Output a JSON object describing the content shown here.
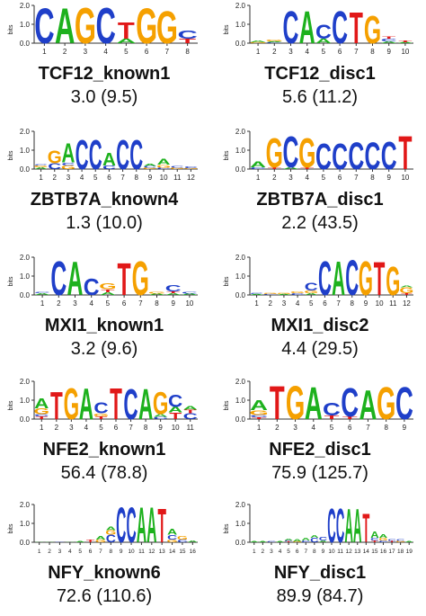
{
  "colors": {
    "A": "#1db11d",
    "C": "#1f3fc9",
    "G": "#f5a000",
    "T": "#e11818",
    "axis": "#333333"
  },
  "axis": {
    "ylabel": "bits",
    "ticks": [
      "0.0",
      "1.0",
      "2.0"
    ]
  },
  "panels": [
    {
      "id": "tcf12-known1",
      "title": "TCF12_known1",
      "score": "3.0 (9.5)",
      "positions": [
        [
          [
            "C",
            1.9
          ]
        ],
        [
          [
            "A",
            1.9
          ]
        ],
        [
          [
            "G",
            1.95
          ]
        ],
        [
          [
            "C",
            1.95
          ]
        ],
        [
          [
            "A",
            0.25
          ],
          [
            "T",
            0.9
          ]
        ],
        [
          [
            "G",
            1.9
          ]
        ],
        [
          [
            "G",
            1.75
          ]
        ],
        [
          [
            "T",
            0.25
          ],
          [
            "C",
            0.45
          ]
        ]
      ]
    },
    {
      "id": "tcf12-disc1",
      "title": "TCF12_disc1",
      "score": "5.6 (11.2)",
      "positions": [
        [
          [
            "G",
            0.05
          ],
          [
            "A",
            0.1
          ]
        ],
        [
          [
            "C",
            0.05
          ],
          [
            "A",
            0.05
          ],
          [
            "G",
            0.1
          ]
        ],
        [
          [
            "C",
            1.75
          ]
        ],
        [
          [
            "A",
            1.75
          ]
        ],
        [
          [
            "A",
            0.25
          ],
          [
            "C",
            0.75
          ]
        ],
        [
          [
            "C",
            1.75
          ]
        ],
        [
          [
            "T",
            1.7
          ]
        ],
        [
          [
            "G",
            1.5
          ]
        ],
        [
          [
            "A",
            0.1
          ],
          [
            "C",
            0.15
          ],
          [
            "T",
            0.12
          ]
        ],
        [
          [
            "A",
            0.05
          ],
          [
            "T",
            0.1
          ]
        ]
      ]
    },
    {
      "id": "zbtb7a-known4",
      "title": "ZBTB7A_known4",
      "score": "1.3 (10.0)",
      "positions": [
        [
          [
            "A",
            0.1
          ],
          [
            "G",
            0.08
          ],
          [
            "C",
            0.06
          ]
        ],
        [
          [
            "C",
            0.3
          ],
          [
            "G",
            0.7
          ]
        ],
        [
          [
            "G",
            0.2
          ],
          [
            "C",
            0.15
          ],
          [
            "A",
            1.05
          ]
        ],
        [
          [
            "C",
            1.6
          ]
        ],
        [
          [
            "C",
            1.6
          ]
        ],
        [
          [
            "C",
            0.2
          ],
          [
            "A",
            0.7
          ]
        ],
        [
          [
            "C",
            1.6
          ]
        ],
        [
          [
            "C",
            1.6
          ]
        ],
        [
          [
            "G",
            0.08
          ],
          [
            "C",
            0.08
          ],
          [
            "A",
            0.12
          ]
        ],
        [
          [
            "C",
            0.08
          ],
          [
            "G",
            0.15
          ],
          [
            "A",
            0.3
          ]
        ],
        [
          [
            "G",
            0.08
          ],
          [
            "C",
            0.1
          ]
        ],
        [
          [
            "G",
            0.05
          ],
          [
            "C",
            0.1
          ]
        ]
      ]
    },
    {
      "id": "zbtb7a-disc1",
      "title": "ZBTB7A_disc1",
      "score": "2.2 (43.5)",
      "positions": [
        [
          [
            "C",
            0.1
          ],
          [
            "A",
            0.3
          ]
        ],
        [
          [
            "T",
            0.1
          ],
          [
            "G",
            1.6
          ]
        ],
        [
          [
            "A",
            0.1
          ],
          [
            "C",
            1.7
          ]
        ],
        [
          [
            "T",
            0.1
          ],
          [
            "G",
            1.6
          ]
        ],
        [
          [
            "C",
            1.4
          ]
        ],
        [
          [
            "C",
            1.4
          ]
        ],
        [
          [
            "C",
            1.45
          ]
        ],
        [
          [
            "C",
            1.45
          ]
        ],
        [
          [
            "C",
            1.5
          ]
        ],
        [
          [
            "T",
            1.8
          ]
        ]
      ]
    },
    {
      "id": "mxi1-known1",
      "title": "MXI1_known1",
      "score": "3.2 (9.6)",
      "positions": [
        [
          [
            "A",
            0.1
          ],
          [
            "C",
            0.05
          ]
        ],
        [
          [
            "C",
            1.85
          ]
        ],
        [
          [
            "A",
            1.8
          ]
        ],
        [
          [
            "C",
            0.9
          ]
        ],
        [
          [
            "A",
            0.15
          ],
          [
            "T",
            0.15
          ],
          [
            "G",
            0.3
          ]
        ],
        [
          [
            "T",
            1.75
          ]
        ],
        [
          [
            "G",
            1.85
          ]
        ],
        [
          [
            "A",
            0.08
          ],
          [
            "G",
            0.08
          ]
        ],
        [
          [
            "A",
            0.1
          ],
          [
            "T",
            0.1
          ],
          [
            "C",
            0.35
          ]
        ],
        [
          [
            "A",
            0.08
          ],
          [
            "C",
            0.08
          ]
        ]
      ]
    },
    {
      "id": "mxi1-disc2",
      "title": "MXI1_disc2",
      "score": "4.4 (29.5)",
      "positions": [
        [
          [
            "A",
            0.05
          ],
          [
            "C",
            0.05
          ]
        ],
        [
          [
            "C",
            0.05
          ],
          [
            "G",
            0.05
          ]
        ],
        [
          [
            "A",
            0.05
          ],
          [
            "G",
            0.05
          ]
        ],
        [
          [
            "C",
            0.1
          ],
          [
            "G",
            0.1
          ]
        ],
        [
          [
            "A",
            0.1
          ],
          [
            "G",
            0.15
          ],
          [
            "C",
            0.4
          ]
        ],
        [
          [
            "C",
            1.85
          ]
        ],
        [
          [
            "A",
            1.85
          ]
        ],
        [
          [
            "C",
            1.9
          ]
        ],
        [
          [
            "G",
            1.85
          ]
        ],
        [
          [
            "T",
            1.8
          ]
        ],
        [
          [
            "G",
            1.55
          ]
        ],
        [
          [
            "T",
            0.1
          ],
          [
            "G",
            0.3
          ],
          [
            "A",
            0.08
          ]
        ]
      ]
    },
    {
      "id": "nfe2-known1",
      "title": "NFE2_known1",
      "score": "56.4 (78.8)",
      "positions": [
        [
          [
            "T",
            0.15
          ],
          [
            "C",
            0.12
          ],
          [
            "G",
            0.3
          ],
          [
            "A",
            0.55
          ]
        ],
        [
          [
            "T",
            1.5
          ]
        ],
        [
          [
            "G",
            1.7
          ]
        ],
        [
          [
            "A",
            1.7
          ]
        ],
        [
          [
            "T",
            0.15
          ],
          [
            "G",
            0.15
          ],
          [
            "C",
            0.6
          ]
        ],
        [
          [
            "T",
            1.7
          ]
        ],
        [
          [
            "C",
            1.65
          ]
        ],
        [
          [
            "A",
            1.65
          ]
        ],
        [
          [
            "C",
            0.12
          ],
          [
            "A",
            0.15
          ],
          [
            "G",
            1.2
          ]
        ],
        [
          [
            "T",
            0.35
          ],
          [
            "A",
            0.3
          ],
          [
            "C",
            0.65
          ]
        ],
        [
          [
            "C",
            0.3
          ],
          [
            "T",
            0.2
          ],
          [
            "A",
            0.2
          ]
        ]
      ]
    },
    {
      "id": "nfe2-disc1",
      "title": "NFE2_disc1",
      "score": "75.9 (125.7)",
      "positions": [
        [
          [
            "T",
            0.1
          ],
          [
            "C",
            0.12
          ],
          [
            "G",
            0.25
          ],
          [
            "A",
            0.55
          ]
        ],
        [
          [
            "T",
            1.8
          ]
        ],
        [
          [
            "G",
            1.8
          ]
        ],
        [
          [
            "A",
            1.75
          ]
        ],
        [
          [
            "T",
            0.2
          ],
          [
            "C",
            0.7
          ]
        ],
        [
          [
            "T",
            0.15
          ],
          [
            "C",
            1.55
          ]
        ],
        [
          [
            "A",
            1.6
          ]
        ],
        [
          [
            "G",
            1.75
          ]
        ],
        [
          [
            "C",
            1.75
          ]
        ]
      ]
    },
    {
      "id": "nfy-known6",
      "title": "NFY_known6",
      "score": "72.6 (110.6)",
      "positions": [
        [
          [
            "A",
            0.02
          ]
        ],
        [
          [
            "A",
            0.02
          ]
        ],
        [
          [
            "C",
            0.02
          ]
        ],
        [
          [
            "A",
            0.03
          ]
        ],
        [
          [
            "A",
            0.05
          ]
        ],
        [
          [
            "T",
            0.15
          ]
        ],
        [
          [
            "G",
            0.15
          ],
          [
            "A",
            0.2
          ]
        ],
        [
          [
            "C",
            0.4
          ],
          [
            "G",
            0.25
          ],
          [
            "A",
            0.2
          ]
        ],
        [
          [
            "C",
            1.9
          ]
        ],
        [
          [
            "C",
            1.9
          ]
        ],
        [
          [
            "A",
            1.9
          ]
        ],
        [
          [
            "A",
            1.9
          ]
        ],
        [
          [
            "T",
            1.85
          ]
        ],
        [
          [
            "G",
            0.15
          ],
          [
            "C",
            0.25
          ],
          [
            "A",
            0.3
          ]
        ],
        [
          [
            "C",
            0.15
          ],
          [
            "G",
            0.2
          ]
        ],
        [
          [
            "A",
            0.08
          ]
        ]
      ]
    },
    {
      "id": "nfy-disc1",
      "title": "NFY_disc1",
      "score": "89.9 (84.7)",
      "positions": [
        [
          [
            "A",
            0.05
          ]
        ],
        [
          [
            "A",
            0.05
          ]
        ],
        [
          [
            "C",
            0.05
          ]
        ],
        [
          [
            "A",
            0.05
          ]
        ],
        [
          [
            "T",
            0.05
          ],
          [
            "C",
            0.05
          ],
          [
            "A",
            0.08
          ]
        ],
        [
          [
            "G",
            0.05
          ],
          [
            "A",
            0.12
          ]
        ],
        [
          [
            "C",
            0.1
          ],
          [
            "A",
            0.15
          ]
        ],
        [
          [
            "C",
            0.25
          ],
          [
            "A",
            0.15
          ]
        ],
        [
          [
            "A",
            0.1
          ],
          [
            "C",
            0.2
          ]
        ],
        [
          [
            "C",
            1.85
          ]
        ],
        [
          [
            "C",
            1.85
          ]
        ],
        [
          [
            "A",
            1.8
          ]
        ],
        [
          [
            "A",
            1.8
          ]
        ],
        [
          [
            "T",
            1.55
          ]
        ],
        [
          [
            "T",
            0.1
          ],
          [
            "C",
            0.15
          ],
          [
            "A",
            0.35
          ]
        ],
        [
          [
            "C",
            0.1
          ],
          [
            "G",
            0.15
          ],
          [
            "A",
            0.2
          ]
        ],
        [
          [
            "T",
            0.08
          ],
          [
            "C",
            0.1
          ]
        ],
        [
          [
            "G",
            0.08
          ],
          [
            "C",
            0.08
          ]
        ],
        [
          [
            "A",
            0.05
          ]
        ]
      ]
    }
  ]
}
